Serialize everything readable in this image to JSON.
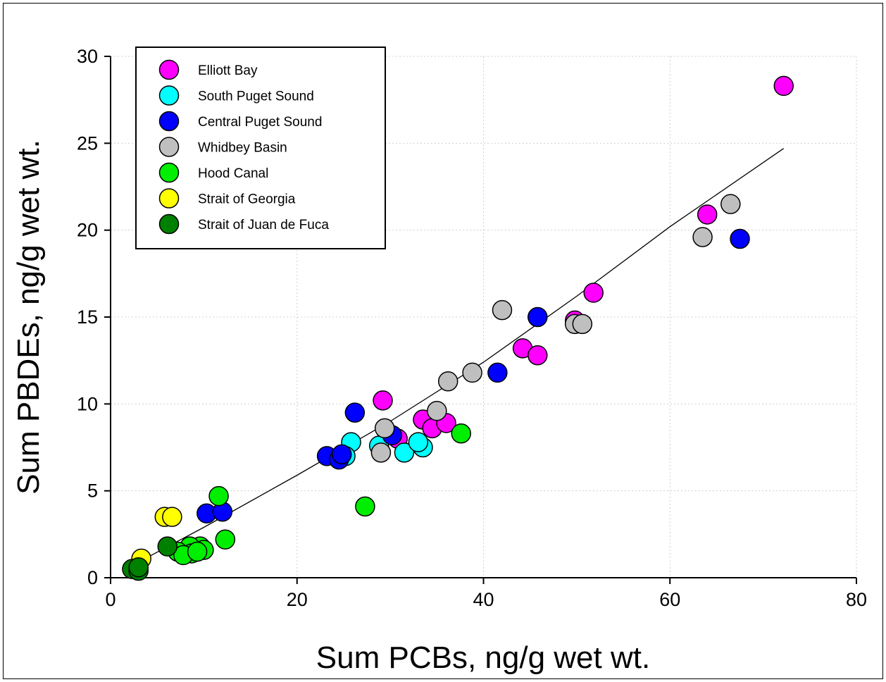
{
  "chart_data": {
    "type": "scatter",
    "title": "",
    "xlabel": "Sum PCBs, ng/g wet wt.",
    "ylabel": "Sum PBDEs, ng/g wet wt.",
    "xlim": [
      0,
      80
    ],
    "ylim": [
      0,
      30
    ],
    "x_ticks": [
      0,
      20,
      40,
      60,
      80
    ],
    "y_ticks": [
      0,
      5,
      10,
      15,
      20,
      25,
      30
    ],
    "x_tick_labels": [
      "0",
      "20",
      "40",
      "60",
      "80"
    ],
    "y_tick_labels": [
      "0",
      "5",
      "10",
      "15",
      "20",
      "25",
      "30"
    ],
    "grid": "dotted",
    "legend_position": "top-left",
    "series": [
      {
        "name": "Elliott Bay",
        "color": "#ff00ff",
        "points": [
          [
            72.2,
            28.3
          ],
          [
            64.0,
            20.9
          ],
          [
            51.8,
            16.4
          ],
          [
            49.8,
            14.8
          ],
          [
            44.2,
            13.2
          ],
          [
            45.8,
            12.8
          ],
          [
            29.2,
            10.2
          ],
          [
            33.5,
            9.1
          ],
          [
            34.5,
            8.6
          ],
          [
            36.0,
            8.9
          ],
          [
            30.8,
            8.0
          ]
        ]
      },
      {
        "name": "South Puget Sound",
        "color": "#00ffff",
        "points": [
          [
            25.8,
            7.8
          ],
          [
            25.2,
            7.0
          ],
          [
            28.8,
            7.6
          ],
          [
            31.5,
            7.2
          ],
          [
            33.5,
            7.5
          ],
          [
            33.0,
            7.8
          ]
        ]
      },
      {
        "name": "Central Puget Sound",
        "color": "#0000ff",
        "points": [
          [
            67.5,
            19.5
          ],
          [
            45.8,
            15.0
          ],
          [
            41.5,
            11.8
          ],
          [
            26.2,
            9.5
          ],
          [
            30.2,
            8.2
          ],
          [
            23.2,
            7.0
          ],
          [
            24.5,
            6.8
          ],
          [
            24.8,
            7.1
          ],
          [
            10.3,
            3.7
          ],
          [
            12.0,
            3.8
          ]
        ]
      },
      {
        "name": "Whidbey Basin",
        "color": "#bfbfbf",
        "points": [
          [
            66.5,
            21.5
          ],
          [
            63.5,
            19.6
          ],
          [
            49.8,
            14.6
          ],
          [
            50.6,
            14.6
          ],
          [
            42.0,
            15.4
          ],
          [
            38.8,
            11.8
          ],
          [
            36.2,
            11.3
          ],
          [
            35.0,
            9.6
          ],
          [
            29.4,
            8.6
          ],
          [
            29.0,
            7.2
          ]
        ]
      },
      {
        "name": "Hood Canal",
        "color": "#00ee00",
        "points": [
          [
            37.6,
            8.3
          ],
          [
            27.3,
            4.1
          ],
          [
            11.6,
            4.7
          ],
          [
            12.3,
            2.2
          ],
          [
            9.6,
            1.8
          ],
          [
            10.0,
            1.6
          ],
          [
            8.5,
            1.8
          ],
          [
            8.7,
            1.4
          ],
          [
            7.2,
            1.5
          ],
          [
            7.8,
            1.3
          ],
          [
            9.3,
            1.5
          ]
        ]
      },
      {
        "name": "Strait of Georgia",
        "color": "#ffff00",
        "points": [
          [
            5.8,
            3.5
          ],
          [
            6.6,
            3.5
          ],
          [
            3.3,
            1.1
          ]
        ]
      },
      {
        "name": "Strait of Juan de Fuca",
        "color": "#008000",
        "points": [
          [
            6.1,
            1.8
          ],
          [
            2.3,
            0.5
          ],
          [
            3.0,
            0.4
          ],
          [
            3.0,
            0.6
          ]
        ]
      }
    ],
    "fit_line": {
      "type": "curve",
      "color": "#000000",
      "points": [
        [
          3.0,
          0.9
        ],
        [
          10,
          2.9
        ],
        [
          20,
          5.9
        ],
        [
          30,
          9.0
        ],
        [
          40,
          12.4
        ],
        [
          50,
          16.2
        ],
        [
          60,
          20.2
        ],
        [
          72.2,
          24.7
        ]
      ]
    }
  }
}
